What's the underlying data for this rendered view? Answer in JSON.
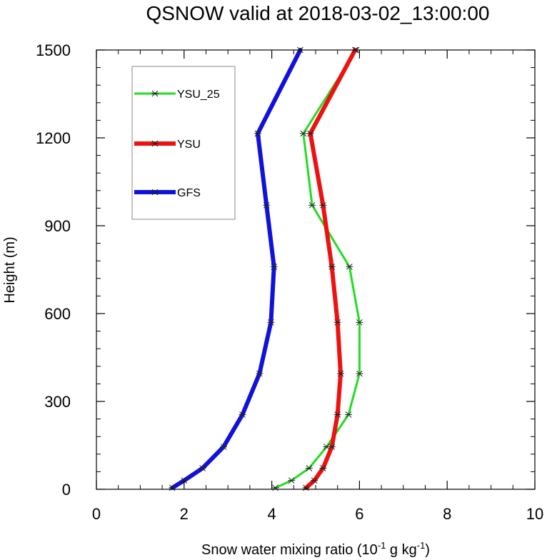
{
  "chart_data": {
    "type": "line",
    "title": "QSNOW valid at 2018-03-02_13:00:00",
    "xlabel": {
      "base": "Snow water mixing ratio (10",
      "sup1": "-1",
      "mid": " g kg",
      "sup2": "-1",
      "end": ")"
    },
    "ylabel": "Height (m)",
    "xlim": [
      0,
      10
    ],
    "ylim": [
      0,
      1500
    ],
    "xticks": [
      0,
      2,
      4,
      6,
      8,
      10
    ],
    "xticklabels": [
      "0",
      "2",
      "4",
      "6",
      "8",
      "10"
    ],
    "yticks": [
      0,
      300,
      600,
      900,
      1200,
      1500
    ],
    "yticklabels": [
      "0",
      "300",
      "600",
      "900",
      "1200",
      "1500"
    ],
    "grid": false,
    "legend_position": "top-left",
    "series": [
      {
        "name": "YSU_25",
        "color": "#22dd22",
        "width": 3,
        "x": [
          4.08,
          4.45,
          4.85,
          5.25,
          5.75,
          6.0,
          6.0,
          5.77,
          4.92,
          4.72,
          5.93
        ],
        "y": [
          5,
          30,
          72,
          145,
          255,
          395,
          570,
          760,
          970,
          1215,
          1500
        ]
      },
      {
        "name": "YSU",
        "color": "#ee1111",
        "width": 6,
        "x": [
          4.78,
          4.97,
          5.17,
          5.37,
          5.5,
          5.57,
          5.5,
          5.37,
          5.17,
          4.88,
          5.9
        ],
        "y": [
          5,
          30,
          72,
          145,
          255,
          395,
          570,
          760,
          970,
          1215,
          1500
        ]
      },
      {
        "name": "GFS",
        "color": "#1111dd",
        "width": 6,
        "x": [
          1.73,
          2.0,
          2.42,
          2.9,
          3.33,
          3.72,
          3.98,
          4.05,
          3.88,
          3.68,
          4.65
        ],
        "y": [
          5,
          30,
          72,
          145,
          255,
          395,
          570,
          760,
          970,
          1215,
          1500
        ]
      }
    ]
  }
}
